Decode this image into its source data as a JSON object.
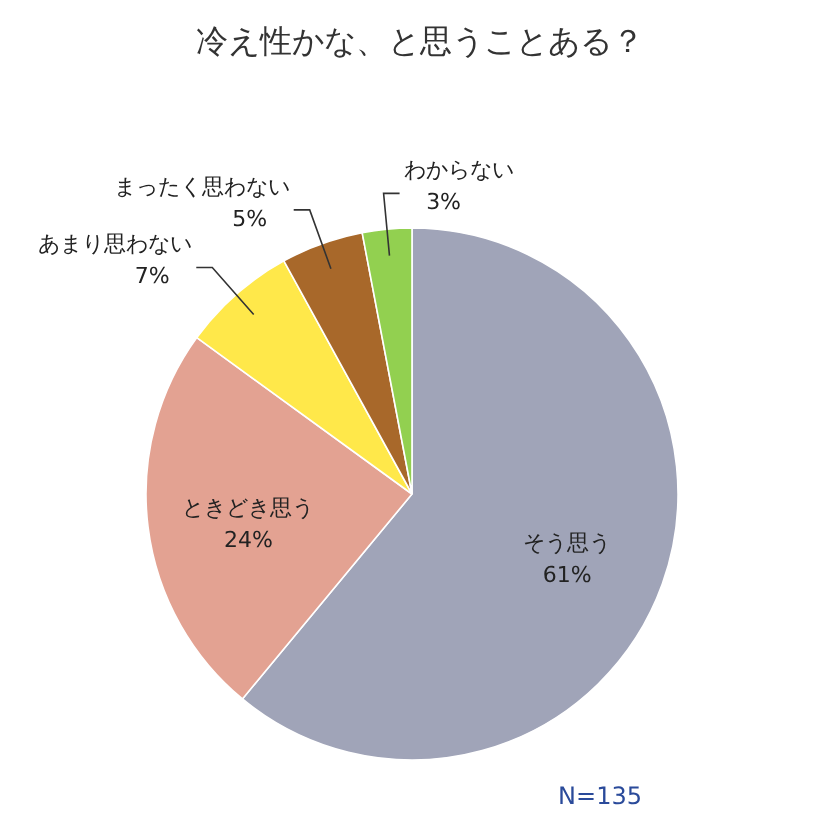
{
  "chart_data": {
    "type": "pie",
    "title": "冷え性かな、と思うことある？",
    "categories": [
      "そう思う",
      "ときどき思う",
      "あまり思わない",
      "まったく思わない",
      "わからない"
    ],
    "values": [
      61,
      24,
      7,
      5,
      3
    ],
    "value_labels": [
      "61%",
      "24%",
      "7%",
      "5%",
      "3%"
    ],
    "colors": [
      "#a0a4b8",
      "#e3a292",
      "#ffe84a",
      "#a8682a",
      "#92d050"
    ],
    "annotations": [
      "N=135"
    ]
  }
}
